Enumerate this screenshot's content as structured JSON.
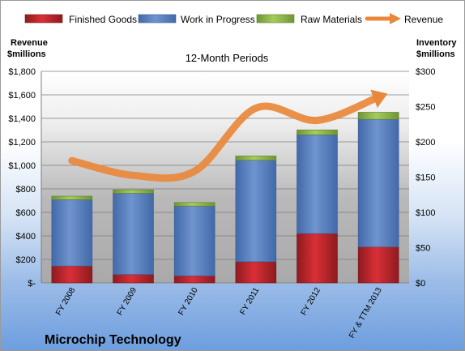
{
  "chart_data": {
    "type": "bar",
    "title": "12-Month Periods",
    "company": "Microchip Technology",
    "left_axis_title": [
      "Revenue",
      "$millions"
    ],
    "right_axis_title": [
      "Inventory",
      "$millions"
    ],
    "categories": [
      "FY 2008",
      "FY 2009",
      "FY 2010",
      "FY 2011",
      "FY 2012",
      "FY & TTM 2013"
    ],
    "left_axis": {
      "min": 0,
      "max": 1800,
      "step": 200,
      "tick_labels": [
        "$-",
        "$200",
        "$400",
        "$600",
        "$800",
        "$1,000",
        "$1,200",
        "$1,400",
        "$1,600",
        "$1,800"
      ]
    },
    "right_axis": {
      "min": 0,
      "max": 300,
      "step": 50,
      "tick_labels": [
        "$0",
        "$50",
        "$100",
        "$150",
        "$200",
        "$250",
        "$300"
      ]
    },
    "series": [
      {
        "name": "Finished Goods",
        "axis": "right",
        "kind": "stacked-bar",
        "color": "#c0272d",
        "values": [
          24,
          12,
          10,
          30,
          70,
          51
        ]
      },
      {
        "name": "Work in Progress",
        "axis": "right",
        "kind": "stacked-bar",
        "color": "#5b82c0",
        "values": [
          94,
          115,
          99,
          144,
          140,
          181
        ]
      },
      {
        "name": "Raw Materials",
        "axis": "right",
        "kind": "stacked-bar",
        "color": "#8db34a",
        "values": [
          5,
          5,
          5,
          6,
          7,
          10
        ]
      },
      {
        "name": "Revenue",
        "axis": "left",
        "kind": "line",
        "color": "#e9883a",
        "values": [
          1040,
          915,
          950,
          1487,
          1383,
          1581
        ]
      }
    ],
    "grid": true,
    "legend_position": "top"
  }
}
